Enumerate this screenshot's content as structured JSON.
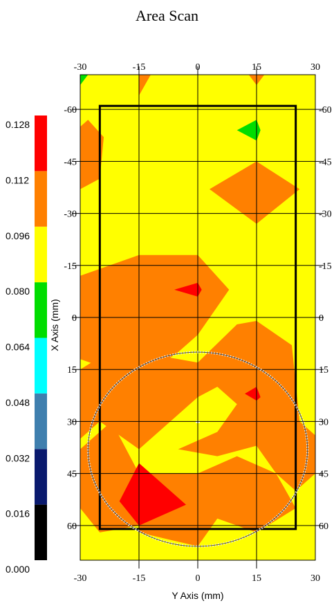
{
  "chart_data": {
    "type": "heatmap",
    "title": "Area Scan",
    "xlabel": "Y Axis (mm)",
    "ylabel": "X Axis (mm)",
    "xlim": [
      -30,
      30
    ],
    "ylim": [
      -70,
      70
    ],
    "x_ticks": [
      -30,
      -15,
      0,
      15,
      30
    ],
    "y_ticks": [
      -60,
      -45,
      -30,
      -15,
      0,
      15,
      30,
      45,
      60
    ],
    "grid": true,
    "colorbar": {
      "position": "left",
      "ticks": [
        "0.000",
        "0.016",
        "0.032",
        "0.048",
        "0.064",
        "0.080",
        "0.096",
        "0.112",
        "0.128"
      ],
      "bands": [
        {
          "from": 0.0,
          "to": 0.016,
          "color": "#000000"
        },
        {
          "from": 0.016,
          "to": 0.032,
          "color": "#0a1a6e"
        },
        {
          "from": 0.032,
          "to": 0.048,
          "color": "#3f7fae"
        },
        {
          "from": 0.048,
          "to": 0.064,
          "color": "#00ffff"
        },
        {
          "from": 0.064,
          "to": 0.08,
          "color": "#00dd00"
        },
        {
          "from": 0.08,
          "to": 0.096,
          "color": "#ffff00"
        },
        {
          "from": 0.096,
          "to": 0.112,
          "color": "#ff8000"
        },
        {
          "from": 0.112,
          "to": 0.128,
          "color": "#ff0000"
        }
      ]
    },
    "background_level": "0.080-0.096",
    "regions": [
      {
        "level": "0.096-0.112",
        "color": "#ff8000",
        "points": [
          [
            -30,
            -55
          ],
          [
            -28,
            -57
          ],
          [
            -24,
            -52
          ],
          [
            -25,
            -40
          ],
          [
            -30,
            -37
          ]
        ]
      },
      {
        "level": "0.096-0.112",
        "color": "#ff8000",
        "points": [
          [
            3,
            -37
          ],
          [
            15,
            -45
          ],
          [
            26,
            -37
          ],
          [
            15,
            -27
          ]
        ]
      },
      {
        "level": "0.096-0.112",
        "color": "#ff8000",
        "points": [
          [
            -30,
            -12
          ],
          [
            -15,
            -18
          ],
          [
            0,
            -18
          ],
          [
            8,
            -8
          ],
          [
            0,
            5
          ],
          [
            -5,
            10
          ],
          [
            -15,
            18
          ],
          [
            -30,
            12
          ]
        ]
      },
      {
        "level": "0.096-0.112",
        "color": "#ff8000",
        "points": [
          [
            -30,
            15
          ],
          [
            -20,
            8
          ],
          [
            -15,
            10
          ],
          [
            0,
            13
          ],
          [
            10,
            2
          ],
          [
            15,
            1
          ],
          [
            24,
            8
          ],
          [
            26,
            30
          ],
          [
            30,
            34
          ],
          [
            30,
            45
          ],
          [
            25,
            50
          ],
          [
            20,
            45
          ],
          [
            15,
            37
          ],
          [
            5,
            40
          ],
          [
            -5,
            38
          ],
          [
            5,
            33
          ],
          [
            10,
            25
          ],
          [
            5,
            20
          ],
          [
            0,
            23
          ],
          [
            -15,
            38
          ],
          [
            -25,
            30
          ],
          [
            -30,
            35
          ]
        ]
      },
      {
        "level": "0.096-0.112",
        "color": "#ff8000",
        "points": [
          [
            -30,
            38
          ],
          [
            -22,
            30
          ],
          [
            -15,
            45
          ],
          [
            -15,
            60
          ],
          [
            -25,
            62
          ],
          [
            -30,
            55
          ]
        ]
      },
      {
        "level": "0.096-0.112",
        "color": "#ff8000",
        "points": [
          [
            -15,
            45
          ],
          [
            0,
            45
          ],
          [
            10,
            40
          ],
          [
            20,
            45
          ],
          [
            25,
            55
          ],
          [
            15,
            62
          ],
          [
            5,
            58
          ],
          [
            0,
            66
          ],
          [
            -15,
            62
          ]
        ]
      },
      {
        "level": "0.096-0.112",
        "color": "#ff8000",
        "points": [
          [
            -15,
            -70
          ],
          [
            -12,
            -70
          ],
          [
            -15,
            -64
          ]
        ]
      },
      {
        "level": "0.096-0.112",
        "color": "#ff8000",
        "points": [
          [
            13,
            -70
          ],
          [
            17,
            -70
          ],
          [
            15,
            -67
          ]
        ]
      },
      {
        "level": "0.112-0.128",
        "color": "#ff0000",
        "points": [
          [
            -6,
            -8
          ],
          [
            0,
            -10
          ],
          [
            1,
            -8
          ],
          [
            0,
            -6
          ]
        ]
      },
      {
        "level": "0.112-0.128",
        "color": "#ff0000",
        "points": [
          [
            12,
            22
          ],
          [
            15,
            20
          ],
          [
            16,
            23
          ],
          [
            15,
            24
          ]
        ]
      },
      {
        "level": "0.112-0.128",
        "color": "#ff0000",
        "points": [
          [
            -20,
            53
          ],
          [
            -15,
            42
          ],
          [
            -3,
            54
          ],
          [
            -15,
            60
          ]
        ]
      },
      {
        "level": "0.064-0.080",
        "color": "#00dd00",
        "points": [
          [
            10,
            -54
          ],
          [
            15,
            -57
          ],
          [
            16,
            -54
          ],
          [
            15,
            -51
          ]
        ]
      },
      {
        "level": "0.064-0.080",
        "color": "#00dd00",
        "points": [
          [
            -30,
            -70
          ],
          [
            -28,
            -70
          ],
          [
            -30,
            -67
          ]
        ]
      }
    ],
    "rectangle": {
      "y": [
        -25,
        25
      ],
      "x": [
        -61,
        61
      ]
    },
    "circle": {
      "center": [
        0,
        38
      ],
      "radius": 28
    }
  }
}
